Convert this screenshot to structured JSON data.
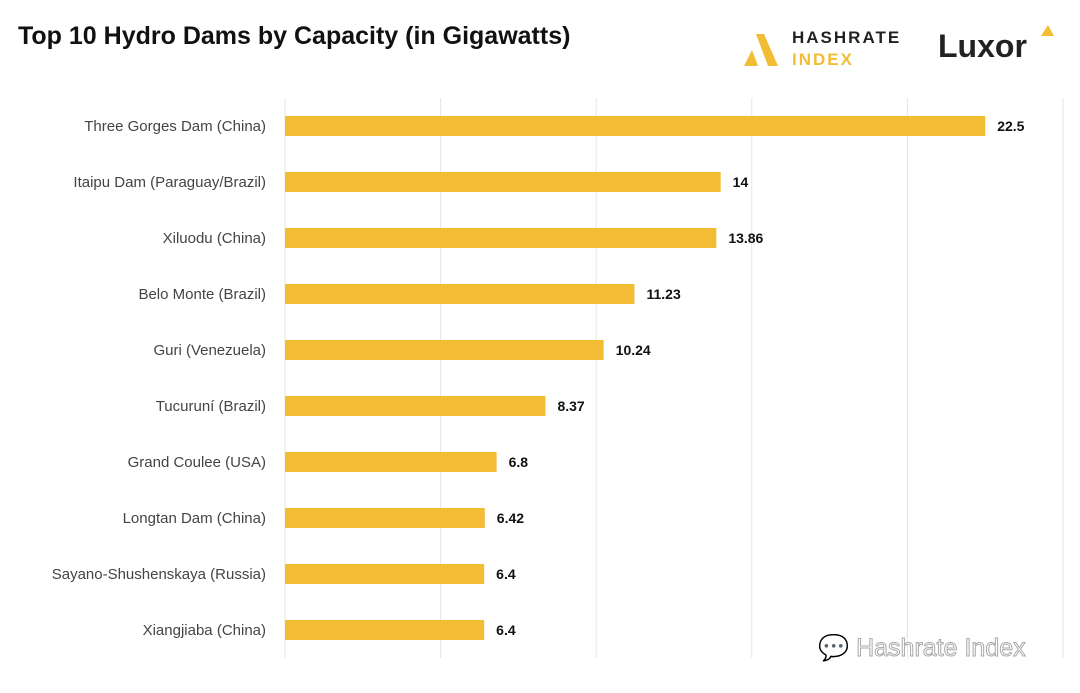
{
  "logos": {
    "hashrate_line1": "HASHRATE",
    "hashrate_line2": "INDEX",
    "luxor": "Luxor",
    "watermark": "Hashrate Index"
  },
  "colors": {
    "bar": "#f2bd35",
    "grid": "#e4e4e4"
  },
  "chart_data": {
    "type": "bar",
    "orientation": "horizontal",
    "title": "Top 10 Hydro Dams by Capacity (in Gigawatts)",
    "xlabel": "",
    "ylabel": "",
    "xlim": [
      0,
      25
    ],
    "grid": true,
    "grid_step": 5,
    "categories": [
      "Three Gorges Dam (China)",
      "Itaipu Dam (Paraguay/Brazil)",
      "Xiluodu (China)",
      "Belo Monte (Brazil)",
      "Guri (Venezuela)",
      "Tucuruní (Brazil)",
      "Grand Coulee (USA)",
      "Longtan Dam (China)",
      "Sayano-Shushenskaya (Russia)",
      "Xiangjiaba (China)"
    ],
    "values": [
      22.5,
      14,
      13.86,
      11.23,
      10.24,
      8.37,
      6.8,
      6.42,
      6.4,
      6.4
    ],
    "value_labels": [
      "22.5",
      "14",
      "13.86",
      "11.23",
      "10.24",
      "8.37",
      "6.8",
      "6.42",
      "6.4",
      "6.4"
    ]
  }
}
